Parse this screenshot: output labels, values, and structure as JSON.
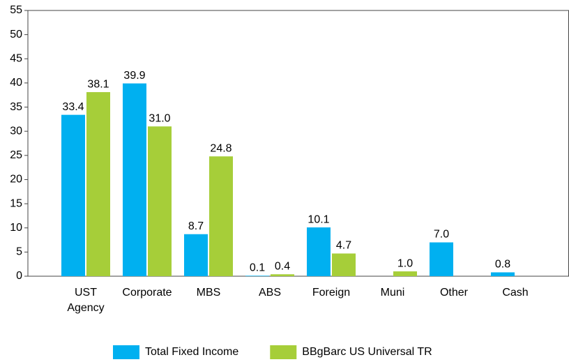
{
  "chart_data": {
    "type": "bar",
    "categories": [
      "UST Agency",
      "Corporate",
      "MBS",
      "ABS",
      "Foreign",
      "Muni",
      "Other",
      "Cash"
    ],
    "series": [
      {
        "name": "Total Fixed Income",
        "color": "#00b0f0",
        "values": [
          33.4,
          39.9,
          8.7,
          0.1,
          10.1,
          null,
          7.0,
          0.8
        ],
        "value_labels": [
          "33.4",
          "39.9",
          "8.7",
          "0.1",
          "10.1",
          null,
          "7.0",
          "0.8"
        ]
      },
      {
        "name": "BBgBarc US Universal TR",
        "color": "#a6ce39",
        "values": [
          38.1,
          31.0,
          24.8,
          0.4,
          4.7,
          1.0,
          null,
          null
        ],
        "value_labels": [
          "38.1",
          "31.0",
          "24.8",
          "0.4",
          "4.7",
          "1.0",
          null,
          null
        ]
      }
    ],
    "ylim": [
      0,
      55
    ],
    "yticks": [
      0,
      5,
      10,
      15,
      20,
      25,
      30,
      35,
      40,
      45,
      50,
      55
    ],
    "grid": false,
    "legend": "bottom"
  }
}
